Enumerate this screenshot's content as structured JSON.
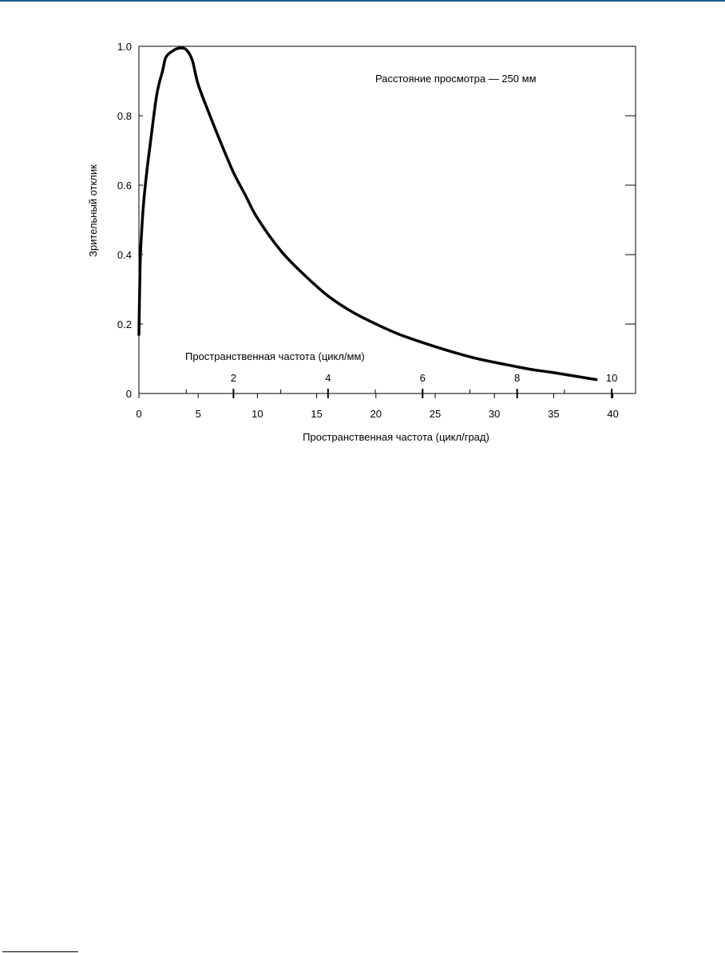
{
  "chart_data": {
    "type": "line",
    "title": "",
    "annotation": "Расстояние просмотра — 250 мм",
    "xlabel": "Пространственная частота (цикл/град)",
    "ylabel": "Зрительный отклик",
    "x2label": "Пространственная частота (цикл/мм)",
    "xlim": [
      0,
      42
    ],
    "ylim": [
      0,
      1.0
    ],
    "x_ticks": [
      0,
      5,
      10,
      15,
      20,
      25,
      30,
      35,
      40
    ],
    "x_tick_labels": [
      "0",
      "5",
      "10",
      "15",
      "20",
      "25",
      "30",
      "35",
      "40"
    ],
    "y_ticks": [
      0,
      0.2,
      0.4,
      0.6,
      0.8,
      1.0
    ],
    "y_tick_labels": [
      "0",
      "0.2",
      "0.4",
      "0.6",
      "0.8",
      "1.0"
    ],
    "x2_ticks": [
      2,
      4,
      6,
      8,
      10
    ],
    "x2_tick_labels": [
      "2",
      "4",
      "6",
      "8",
      "10"
    ],
    "x2_minor_ticks": [
      1,
      3,
      5,
      7,
      9
    ],
    "cyc_per_mm_to_cyc_per_deg": 3.99,
    "grid": false,
    "legend": "none",
    "line_color": "#000000",
    "series": [
      {
        "x": [
          0.0,
          0.1,
          0.2,
          0.4,
          0.7,
          1.0,
          1.5,
          2.0,
          2.3,
          3.0,
          3.5,
          4.0,
          4.5,
          5.0,
          6.0,
          7.0,
          8.0,
          9.0,
          10.0,
          12.0,
          14.0,
          16.0,
          18.0,
          20.0,
          22.0,
          25.0,
          28.0,
          30.0,
          33.0,
          35.0,
          38.6
        ],
        "values": [
          0.17,
          0.37,
          0.45,
          0.55,
          0.65,
          0.73,
          0.86,
          0.93,
          0.97,
          0.99,
          0.995,
          0.99,
          0.96,
          0.89,
          0.8,
          0.715,
          0.635,
          0.57,
          0.505,
          0.41,
          0.34,
          0.28,
          0.235,
          0.2,
          0.17,
          0.135,
          0.105,
          0.09,
          0.07,
          0.06,
          0.04
        ]
      }
    ]
  }
}
